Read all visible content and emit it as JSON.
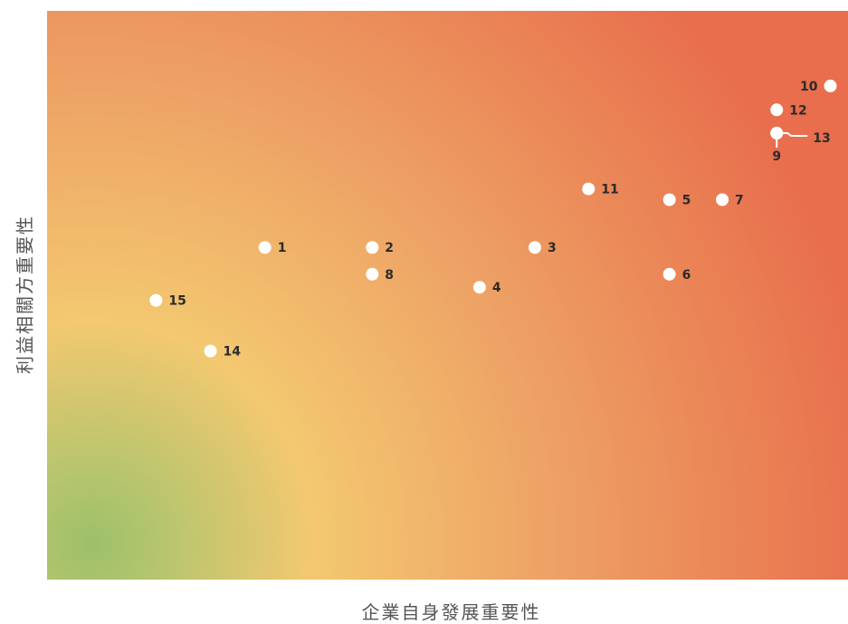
{
  "chart_data": {
    "type": "scatter",
    "title": "",
    "xlabel": "企業自身發展重要性",
    "ylabel": "利益相關方重要性",
    "xlim": [
      0,
      100
    ],
    "ylim": [
      0,
      100
    ],
    "grid": false,
    "background": "radial gradient: green (bottom-left) → yellow → orange → red-orange (top-right)",
    "colors": {
      "marker": "#ffffff",
      "label": "#2b2b2b",
      "gradient_green": "#9dc06a",
      "gradient_yellow": "#f3c870",
      "gradient_orange": "#eea466",
      "gradient_red": "#e86e4d",
      "axis_text": "#555555"
    },
    "points": [
      {
        "label": "1",
        "x": 27.2,
        "y": 58.4
      },
      {
        "label": "2",
        "x": 40.6,
        "y": 58.4
      },
      {
        "label": "3",
        "x": 60.9,
        "y": 58.4
      },
      {
        "label": "4",
        "x": 54.0,
        "y": 51.4
      },
      {
        "label": "5",
        "x": 77.7,
        "y": 66.8
      },
      {
        "label": "6",
        "x": 77.7,
        "y": 53.7
      },
      {
        "label": "7",
        "x": 84.3,
        "y": 66.8
      },
      {
        "label": "8",
        "x": 40.6,
        "y": 53.7
      },
      {
        "label": "9",
        "x": 91.1,
        "y": 78.5
      },
      {
        "label": "10",
        "x": 97.8,
        "y": 86.8
      },
      {
        "label": "11",
        "x": 67.6,
        "y": 68.7
      },
      {
        "label": "12",
        "x": 91.1,
        "y": 82.6
      },
      {
        "label": "13",
        "x": 91.1,
        "y": 78.5
      },
      {
        "label": "14",
        "x": 20.4,
        "y": 40.2
      },
      {
        "label": "15",
        "x": 13.6,
        "y": 49.1
      }
    ]
  }
}
